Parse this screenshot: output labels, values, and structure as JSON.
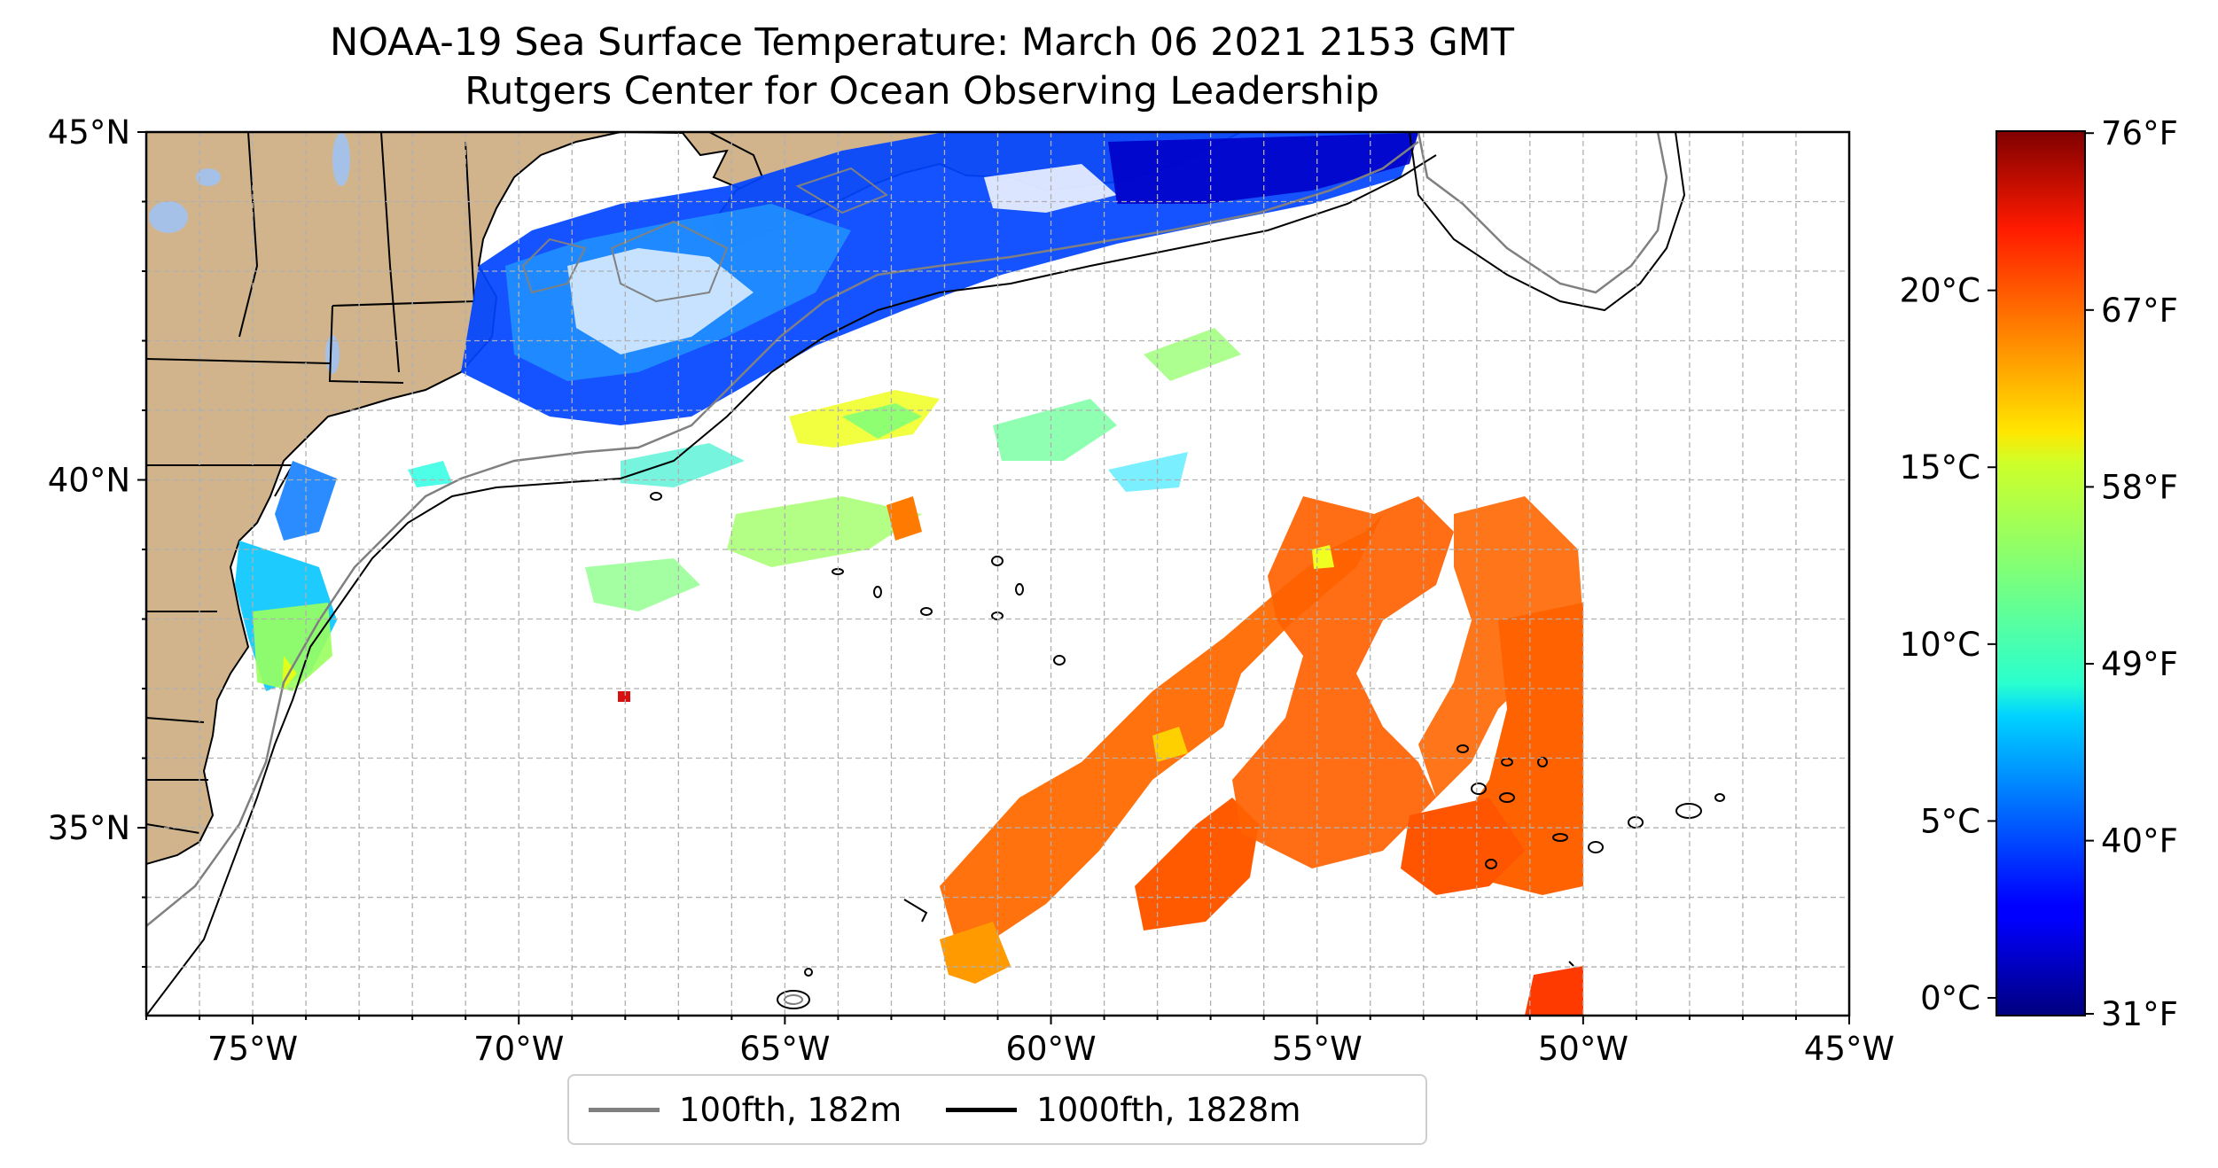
{
  "title": {
    "line1": "NOAA-19 Sea Surface Temperature: March 06 2021 2153 GMT",
    "line2": "Rutgers Center for Ocean Observing Leadership"
  },
  "map": {
    "lon_range": [
      -77,
      -45
    ],
    "lat_range": [
      32.3,
      45
    ],
    "lon_ticks": [
      {
        "value": -75,
        "label": "75°W"
      },
      {
        "value": -70,
        "label": "70°W"
      },
      {
        "value": -65,
        "label": "65°W"
      },
      {
        "value": -60,
        "label": "60°W"
      },
      {
        "value": -55,
        "label": "55°W"
      },
      {
        "value": -50,
        "label": "50°W"
      },
      {
        "value": -45,
        "label": "45°W"
      }
    ],
    "lat_ticks": [
      {
        "value": 45,
        "label": "45°N"
      },
      {
        "value": 40,
        "label": "40°N"
      },
      {
        "value": 35,
        "label": "35°N"
      }
    ],
    "gridlines": true,
    "land_color": "#d2b48c",
    "lake_color": "#a6c1e8",
    "data_edge_lon": -50
  },
  "colorbar": {
    "colormap": "jet",
    "celsius_range": [
      -0.5,
      24.5
    ],
    "celsius_ticks": [
      {
        "value": 0,
        "label": "0°C"
      },
      {
        "value": 5,
        "label": "5°C"
      },
      {
        "value": 10,
        "label": "10°C"
      },
      {
        "value": 15,
        "label": "15°C"
      },
      {
        "value": 20,
        "label": "20°C"
      }
    ],
    "fahrenheit_ticks": [
      {
        "value": 31,
        "label": "31°F"
      },
      {
        "value": 40,
        "label": "40°F"
      },
      {
        "value": 49,
        "label": "49°F"
      },
      {
        "value": 58,
        "label": "58°F"
      },
      {
        "value": 67,
        "label": "67°F"
      },
      {
        "value": 76,
        "label": "76°F"
      }
    ]
  },
  "legend": {
    "placement": "bottom-center",
    "entries": [
      {
        "label": "100fth, 182m",
        "color": "#808080"
      },
      {
        "label": "1000fth, 1828m",
        "color": "#000000"
      }
    ]
  }
}
